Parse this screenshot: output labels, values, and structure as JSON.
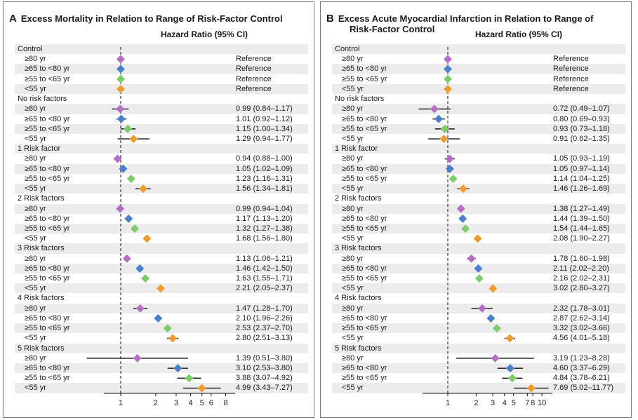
{
  "chart_data": [
    {
      "type": "forest",
      "panel_letter": "A",
      "title": "Excess Mortality in Relation to Range of Risk-Factor Control",
      "title_lines": [
        "Excess Mortality in Relation to Range of Risk-Factor Control"
      ],
      "column_header": "Hazard Ratio (95% CI)",
      "x_scale": "log",
      "xlim": [
        0.85,
        10
      ],
      "reference_line": 1,
      "x_ticks": [
        1,
        2,
        3,
        4,
        5,
        6,
        8
      ],
      "groups": [
        {
          "name": "Control",
          "rows": [
            {
              "label": "≥80 yr",
              "hr": 1,
              "lo": null,
              "hi": null,
              "text": "Reference",
              "color": "#b46fc4"
            },
            {
              "label": "≥65 to <80 yr",
              "hr": 1,
              "lo": null,
              "hi": null,
              "text": "Reference",
              "color": "#4a7fca"
            },
            {
              "label": "≥55 to <65 yr",
              "hr": 1,
              "lo": null,
              "hi": null,
              "text": "Reference",
              "color": "#7ecb6a"
            },
            {
              "label": "<55 yr",
              "hr": 1,
              "lo": null,
              "hi": null,
              "text": "Reference",
              "color": "#ee9b2f"
            }
          ]
        },
        {
          "name": "No risk factors",
          "rows": [
            {
              "label": "≥80 yr",
              "hr": 0.99,
              "lo": 0.84,
              "hi": 1.17,
              "text": "0.99 (0.84–1.17)",
              "color": "#b46fc4"
            },
            {
              "label": "≥65 to <80 yr",
              "hr": 1.01,
              "lo": 0.92,
              "hi": 1.12,
              "text": "1.01 (0.92–1.12)",
              "color": "#4a7fca"
            },
            {
              "label": "≥55 to <65 yr",
              "hr": 1.15,
              "lo": 1.0,
              "hi": 1.34,
              "text": "1.15 (1.00–1.34)",
              "color": "#7ecb6a"
            },
            {
              "label": "<55 yr",
              "hr": 1.29,
              "lo": 0.94,
              "hi": 1.77,
              "text": "1.29 (0.94–1.77)",
              "color": "#ee9b2f"
            }
          ]
        },
        {
          "name": "1 Risk factor",
          "rows": [
            {
              "label": "≥80 yr",
              "hr": 0.94,
              "lo": 0.88,
              "hi": 1.0,
              "text": "0.94 (0.88–1.00)",
              "color": "#b46fc4"
            },
            {
              "label": "≥65 to <80 yr",
              "hr": 1.05,
              "lo": 1.02,
              "hi": 1.09,
              "text": "1.05 (1.02–1.09)",
              "color": "#4a7fca"
            },
            {
              "label": "≥55 to <65 yr",
              "hr": 1.23,
              "lo": 1.16,
              "hi": 1.31,
              "text": "1.23 (1.16–1.31)",
              "color": "#7ecb6a"
            },
            {
              "label": "<55 yr",
              "hr": 1.56,
              "lo": 1.34,
              "hi": 1.81,
              "text": "1.56 (1.34–1.81)",
              "color": "#ee9b2f"
            }
          ]
        },
        {
          "name": "2 Risk factors",
          "rows": [
            {
              "label": "≥80 yr",
              "hr": 0.99,
              "lo": 0.94,
              "hi": 1.04,
              "text": "0.99 (0.94–1.04)",
              "color": "#b46fc4"
            },
            {
              "label": "≥65 to <80 yr",
              "hr": 1.17,
              "lo": 1.13,
              "hi": 1.2,
              "text": "1.17 (1.13–1.20)",
              "color": "#4a7fca"
            },
            {
              "label": "≥55 to <65 yr",
              "hr": 1.32,
              "lo": 1.27,
              "hi": 1.38,
              "text": "1.32 (1.27–1.38)",
              "color": "#7ecb6a"
            },
            {
              "label": "<55 yr",
              "hr": 1.68,
              "lo": 1.56,
              "hi": 1.8,
              "text": "1.68 (1.56–1.80)",
              "color": "#ee9b2f"
            }
          ]
        },
        {
          "name": "3 Risk factors",
          "rows": [
            {
              "label": "≥80 yr",
              "hr": 1.13,
              "lo": 1.06,
              "hi": 1.21,
              "text": "1.13 (1.06–1.21)",
              "color": "#b46fc4"
            },
            {
              "label": "≥65 to <80 yr",
              "hr": 1.46,
              "lo": 1.42,
              "hi": 1.5,
              "text": "1.46 (1.42–1.50)",
              "color": "#4a7fca"
            },
            {
              "label": "≥55 to <65 yr",
              "hr": 1.63,
              "lo": 1.55,
              "hi": 1.71,
              "text": "1.63 (1.55–1.71)",
              "color": "#7ecb6a"
            },
            {
              "label": "<55 yr",
              "hr": 2.21,
              "lo": 2.05,
              "hi": 2.37,
              "text": "2.21 (2.05–2.37)",
              "color": "#ee9b2f"
            }
          ]
        },
        {
          "name": "4 Risk factors",
          "rows": [
            {
              "label": "≥80 yr",
              "hr": 1.47,
              "lo": 1.28,
              "hi": 1.7,
              "text": "1.47 (1.28–1.70)",
              "color": "#b46fc4"
            },
            {
              "label": "≥65 to <80 yr",
              "hr": 2.1,
              "lo": 1.96,
              "hi": 2.26,
              "text": "2.10 (1.96–2.26)",
              "color": "#4a7fca"
            },
            {
              "label": "≥55 to <65 yr",
              "hr": 2.53,
              "lo": 2.37,
              "hi": 2.7,
              "text": "2.53 (2.37–2.70)",
              "color": "#7ecb6a"
            },
            {
              "label": "<55 yr",
              "hr": 2.8,
              "lo": 2.51,
              "hi": 3.13,
              "text": "2.80 (2.51–3.13)",
              "color": "#ee9b2f"
            }
          ]
        },
        {
          "name": "5 Risk factors",
          "rows": [
            {
              "label": "≥80 yr",
              "hr": 1.39,
              "lo": 0.51,
              "hi": 3.8,
              "text": "1.39 (0.51–3.80)",
              "color": "#b46fc4"
            },
            {
              "label": "≥65 to <80 yr",
              "hr": 3.1,
              "lo": 2.53,
              "hi": 3.8,
              "text": "3.10 (2.53–3.80)",
              "color": "#4a7fca"
            },
            {
              "label": "≥55 to <65 yr",
              "hr": 3.88,
              "lo": 3.07,
              "hi": 4.92,
              "text": "3.88 (3.07–4.92)",
              "color": "#7ecb6a"
            },
            {
              "label": "<55 yr",
              "hr": 4.99,
              "lo": 3.43,
              "hi": 7.27,
              "text": "4.99 (3.43–7.27)",
              "color": "#ee9b2f"
            }
          ]
        }
      ]
    },
    {
      "type": "forest",
      "panel_letter": "B",
      "title": "Excess Acute Myocardial Infarction in Relation to Range of Risk-Factor Control",
      "title_lines": [
        "Excess Acute Myocardial Infarction in Relation to Range of",
        "Risk-Factor Control"
      ],
      "column_header": "Hazard Ratio (95% CI)",
      "x_scale": "log",
      "xlim": [
        0.55,
        12
      ],
      "reference_line": 1,
      "x_ticks": [
        1,
        2,
        3,
        4,
        5,
        7,
        8,
        10
      ],
      "groups": [
        {
          "name": "Control",
          "rows": [
            {
              "label": "≥80 yr",
              "hr": 1,
              "lo": null,
              "hi": null,
              "text": "Reference",
              "color": "#b46fc4"
            },
            {
              "label": "≥65 to <80 yr",
              "hr": 1,
              "lo": null,
              "hi": null,
              "text": "Reference",
              "color": "#4a7fca"
            },
            {
              "label": "≥55 to <65 yr",
              "hr": 1,
              "lo": null,
              "hi": null,
              "text": "Reference",
              "color": "#7ecb6a"
            },
            {
              "label": "<55 yr",
              "hr": 1,
              "lo": null,
              "hi": null,
              "text": "Reference",
              "color": "#ee9b2f"
            }
          ]
        },
        {
          "name": "No risk factors",
          "rows": [
            {
              "label": "≥80 yr",
              "hr": 0.72,
              "lo": 0.49,
              "hi": 1.07,
              "text": "0.72 (0.49–1.07)",
              "color": "#b46fc4"
            },
            {
              "label": "≥65 to <80 yr",
              "hr": 0.8,
              "lo": 0.69,
              "hi": 0.93,
              "text": "0.80 (0.69–0.93)",
              "color": "#4a7fca"
            },
            {
              "label": "≥55 to <65 yr",
              "hr": 0.93,
              "lo": 0.73,
              "hi": 1.18,
              "text": "0.93 (0.73–1.18)",
              "color": "#7ecb6a"
            },
            {
              "label": "<55 yr",
              "hr": 0.91,
              "lo": 0.62,
              "hi": 1.35,
              "text": "0.91 (0.62–1.35)",
              "color": "#ee9b2f"
            }
          ]
        },
        {
          "name": "1 Risk factor",
          "rows": [
            {
              "label": "≥80 yr",
              "hr": 1.05,
              "lo": 0.93,
              "hi": 1.19,
              "text": "1.05 (0.93–1.19)",
              "color": "#b46fc4"
            },
            {
              "label": "≥65 to <80 yr",
              "hr": 1.05,
              "lo": 0.97,
              "hi": 1.14,
              "text": "1.05 (0.97–1.14)",
              "color": "#4a7fca"
            },
            {
              "label": "≥55 to <65 yr",
              "hr": 1.14,
              "lo": 1.04,
              "hi": 1.25,
              "text": "1.14 (1.04–1.25)",
              "color": "#7ecb6a"
            },
            {
              "label": "<55 yr",
              "hr": 1.46,
              "lo": 1.26,
              "hi": 1.69,
              "text": "1.46 (1.26–1.69)",
              "color": "#ee9b2f"
            }
          ]
        },
        {
          "name": "2 Risk factors",
          "rows": [
            {
              "label": "≥80 yr",
              "hr": 1.38,
              "lo": 1.27,
              "hi": 1.49,
              "text": "1.38 (1.27–1.49)",
              "color": "#b46fc4"
            },
            {
              "label": "≥65 to <80 yr",
              "hr": 1.44,
              "lo": 1.39,
              "hi": 1.5,
              "text": "1.44 (1.39–1.50)",
              "color": "#4a7fca"
            },
            {
              "label": "≥55 to <65 yr",
              "hr": 1.54,
              "lo": 1.44,
              "hi": 1.65,
              "text": "1.54 (1.44–1.65)",
              "color": "#7ecb6a"
            },
            {
              "label": "<55 yr",
              "hr": 2.08,
              "lo": 1.9,
              "hi": 2.27,
              "text": "2.08 (1.90–2.27)",
              "color": "#ee9b2f"
            }
          ]
        },
        {
          "name": "3 Risk factors",
          "rows": [
            {
              "label": "≥80 yr",
              "hr": 1.78,
              "lo": 1.6,
              "hi": 1.98,
              "text": "1.78 (1.60–1.98)",
              "color": "#b46fc4"
            },
            {
              "label": "≥65 to <80 yr",
              "hr": 2.11,
              "lo": 2.02,
              "hi": 2.2,
              "text": "2.11 (2.02–2.20)",
              "color": "#4a7fca"
            },
            {
              "label": "≥55 to <65 yr",
              "hr": 2.16,
              "lo": 2.02,
              "hi": 2.31,
              "text": "2.16 (2.02–2.31)",
              "color": "#7ecb6a"
            },
            {
              "label": "<55 yr",
              "hr": 3.02,
              "lo": 2.8,
              "hi": 3.27,
              "text": "3.02 (2.80–3.27)",
              "color": "#ee9b2f"
            }
          ]
        },
        {
          "name": "4 Risk factors",
          "rows": [
            {
              "label": "≥80 yr",
              "hr": 2.32,
              "lo": 1.78,
              "hi": 3.01,
              "text": "2.32 (1.78–3.01)",
              "color": "#b46fc4"
            },
            {
              "label": "≥65 to <80 yr",
              "hr": 2.87,
              "lo": 2.62,
              "hi": 3.14,
              "text": "2.87 (2.62–3.14)",
              "color": "#4a7fca"
            },
            {
              "label": "≥55 to <65 yr",
              "hr": 3.32,
              "lo": 3.02,
              "hi": 3.66,
              "text": "3.32 (3.02–3.66)",
              "color": "#7ecb6a"
            },
            {
              "label": "<55 yr",
              "hr": 4.56,
              "lo": 4.01,
              "hi": 5.18,
              "text": "4.56 (4.01–5.18)",
              "color": "#ee9b2f"
            }
          ]
        },
        {
          "name": "5 Risk factors",
          "rows": [
            {
              "label": "≥80 yr",
              "hr": 3.19,
              "lo": 1.23,
              "hi": 8.28,
              "text": "3.19 (1.23–8.28)",
              "color": "#b46fc4"
            },
            {
              "label": "≥65 to <80 yr",
              "hr": 4.6,
              "lo": 3.37,
              "hi": 6.29,
              "text": "4.60 (3.37–6.29)",
              "color": "#4a7fca"
            },
            {
              "label": "≥55 to <65 yr",
              "hr": 4.84,
              "lo": 3.78,
              "hi": 6.21,
              "text": "4.84 (3.78–6.21)",
              "color": "#7ecb6a"
            },
            {
              "label": "<55 yr",
              "hr": 7.69,
              "lo": 5.02,
              "hi": 11.77,
              "text": "7.69 (5.02–11.77)",
              "color": "#ee9b2f"
            }
          ]
        }
      ]
    }
  ]
}
